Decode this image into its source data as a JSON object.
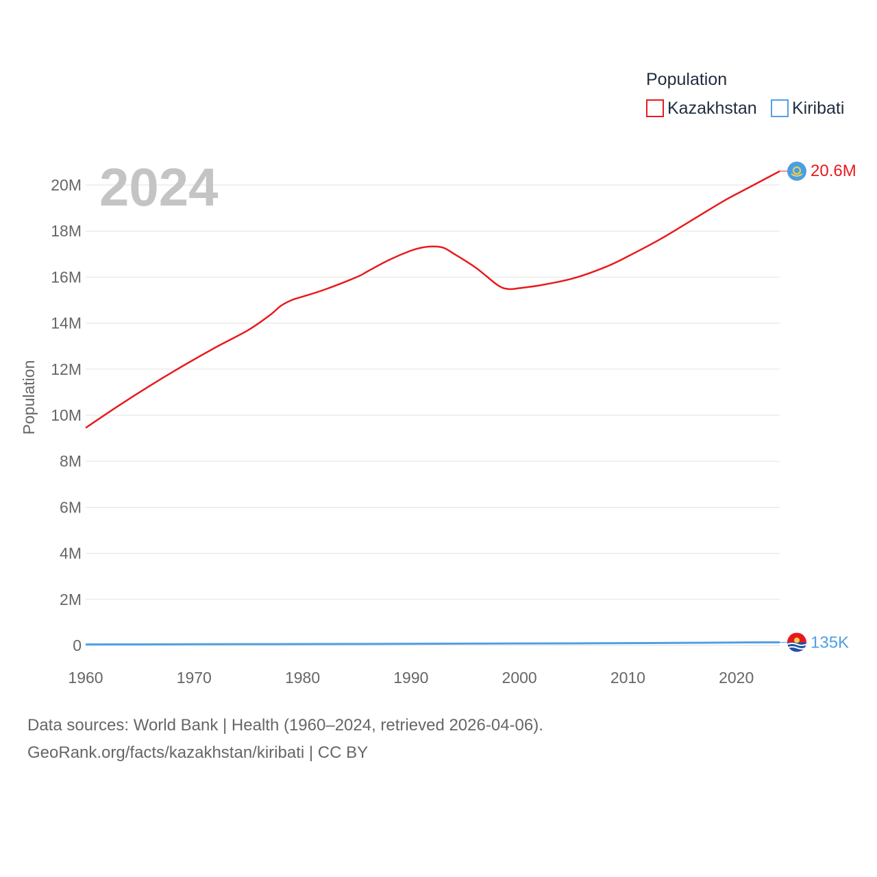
{
  "chart_data": {
    "type": "line",
    "legend_title": "Population",
    "ylabel": "Population",
    "year_watermark": "2024",
    "xlim": [
      1960,
      2024
    ],
    "ylim": [
      0,
      21000000
    ],
    "x_ticks": [
      {
        "value": 1960,
        "label": "1960"
      },
      {
        "value": 1970,
        "label": "1970"
      },
      {
        "value": 1980,
        "label": "1980"
      },
      {
        "value": 1990,
        "label": "1990"
      },
      {
        "value": 2000,
        "label": "2000"
      },
      {
        "value": 2010,
        "label": "2010"
      },
      {
        "value": 2020,
        "label": "2020"
      }
    ],
    "y_ticks": [
      {
        "value": 0,
        "label": "0"
      },
      {
        "value": 2000000,
        "label": "2M"
      },
      {
        "value": 4000000,
        "label": "4M"
      },
      {
        "value": 6000000,
        "label": "6M"
      },
      {
        "value": 8000000,
        "label": "8M"
      },
      {
        "value": 10000000,
        "label": "10M"
      },
      {
        "value": 12000000,
        "label": "12M"
      },
      {
        "value": 14000000,
        "label": "14M"
      },
      {
        "value": 16000000,
        "label": "16M"
      },
      {
        "value": 18000000,
        "label": "18M"
      },
      {
        "value": 20000000,
        "label": "20M"
      }
    ],
    "series": [
      {
        "name": "Kazakhstan",
        "color": "#e8191c",
        "end_label": "20.6M",
        "flag_icon": "kazakhstan-flag-icon",
        "x": [
          1960,
          1963,
          1966,
          1969,
          1972,
          1975,
          1977,
          1978,
          1979,
          1980,
          1982,
          1985,
          1986,
          1988,
          1990,
          1991,
          1992,
          1993,
          1994,
          1996,
          1998,
          1999,
          2000,
          2002,
          2005,
          2008,
          2010,
          2013,
          2016,
          2019,
          2021,
          2023,
          2024
        ],
        "values": [
          9450000,
          10400000,
          11300000,
          12150000,
          12950000,
          13700000,
          14350000,
          14750000,
          15000000,
          15150000,
          15450000,
          16000000,
          16250000,
          16750000,
          17150000,
          17280000,
          17330000,
          17270000,
          17000000,
          16400000,
          15650000,
          15480000,
          15520000,
          15650000,
          15950000,
          16450000,
          16900000,
          17650000,
          18500000,
          19350000,
          19850000,
          20350000,
          20600000
        ]
      },
      {
        "name": "Kiribati",
        "color": "#4f9fe6",
        "end_label": "135K",
        "flag_icon": "kiribati-flag-icon",
        "x": [
          1960,
          1965,
          1970,
          1975,
          1980,
          1985,
          1990,
          1995,
          2000,
          2005,
          2010,
          2015,
          2020,
          2024
        ],
        "values": [
          40000,
          45000,
          51000,
          56000,
          59000,
          65000,
          72000,
          78000,
          84000,
          90000,
          102000,
          110000,
          126000,
          135000
        ]
      }
    ]
  },
  "source": {
    "line1": "Data sources: World Bank | Health (1960–2024, retrieved 2026-04-06).",
    "line2": "GeoRank.org/facts/kazakhstan/kiribati | CC BY"
  }
}
